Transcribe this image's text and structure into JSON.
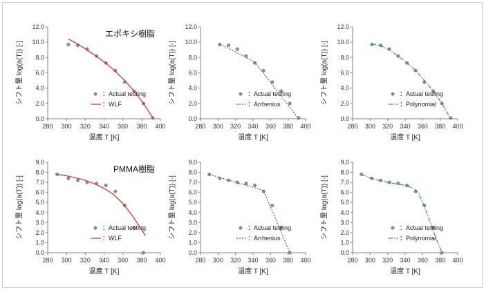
{
  "colors": {
    "actual": "#8c8c8c",
    "wlf": "#d62728",
    "model": "#2b5fbd",
    "poly": "#2ca02c",
    "axis": "#808080"
  },
  "chart_data": [
    {
      "type": "scatter",
      "model": "WLF",
      "title": "エポキシ樹脂",
      "xlabel": "温度 T [K]",
      "ylabel": "シフト量 log(a(T)) [-]",
      "xlim": [
        280,
        400
      ],
      "ylim": [
        0,
        12
      ],
      "xticks": [
        "280",
        "300",
        "320",
        "340",
        "360",
        "380",
        "400"
      ],
      "yticks": [
        "0.0",
        "2.0",
        "4.0",
        "6.0",
        "8.0",
        "10.0",
        "12.0"
      ],
      "legend": [
        "：Actual testing",
        "：WLF"
      ],
      "series": [
        {
          "name": "：Actual testing",
          "kind": "points",
          "x": [
            302,
            312,
            322,
            332,
            342,
            352,
            362,
            372,
            382,
            392
          ],
          "y": [
            9.7,
            9.6,
            9.1,
            8.2,
            7.3,
            6.3,
            4.8,
            3.6,
            2.0,
            0.1
          ]
        },
        {
          "name": "：WLF",
          "kind": "curve",
          "x": [
            302,
            312,
            322,
            332,
            342,
            352,
            362,
            372,
            382,
            392
          ],
          "y": [
            10.4,
            9.75,
            9.0,
            8.15,
            7.25,
            6.2,
            5.0,
            3.6,
            2.0,
            0.1
          ]
        }
      ]
    },
    {
      "type": "scatter",
      "model": "Arrhenius",
      "title": "",
      "xlabel": "温度 T [K]",
      "ylabel": "シフト量 log(a(T)) [-]",
      "xlim": [
        280,
        400
      ],
      "ylim": [
        0,
        12
      ],
      "xticks": [
        "280",
        "300",
        "320",
        "340",
        "360",
        "380",
        "400"
      ],
      "yticks": [
        "0.0",
        "2.0",
        "4.0",
        "6.0",
        "8.0",
        "10.0",
        "12.0"
      ],
      "legend": [
        "：Actual testing",
        "：Arrhenius"
      ],
      "series": [
        {
          "name": "：Actual testing",
          "kind": "points",
          "x": [
            302,
            312,
            322,
            332,
            342,
            352,
            362,
            372,
            382,
            392
          ],
          "y": [
            9.7,
            9.6,
            9.1,
            8.2,
            7.3,
            6.3,
            4.8,
            3.6,
            2.0,
            0.1
          ]
        },
        {
          "name": "：Arrhenius",
          "kind": "dotted",
          "x": [
            302,
            342,
            392
          ],
          "y": [
            9.8,
            7.4,
            0.0
          ]
        }
      ]
    },
    {
      "type": "scatter",
      "model": "Polynomial",
      "title": "",
      "xlabel": "温度 T [K]",
      "ylabel": "シフト量 log(a(T)) [-]",
      "xlim": [
        280,
        400
      ],
      "ylim": [
        0,
        12
      ],
      "xticks": [
        "280",
        "300",
        "320",
        "340",
        "360",
        "380",
        "400"
      ],
      "yticks": [
        "0.0",
        "2.0",
        "4.0",
        "6.0",
        "8.0",
        "10.0",
        "12.0"
      ],
      "legend": [
        "：Actual testing",
        "：Polynomial"
      ],
      "series": [
        {
          "name": "：Actual testing",
          "kind": "points",
          "x": [
            302,
            312,
            322,
            332,
            342,
            352,
            362,
            372,
            382,
            392
          ],
          "y": [
            9.7,
            9.6,
            9.1,
            8.2,
            7.3,
            6.3,
            4.8,
            3.6,
            2.0,
            0.1
          ]
        },
        {
          "name": "：Polynomial",
          "kind": "dashdot",
          "x": [
            302,
            312,
            322,
            332,
            342,
            352,
            362,
            372,
            382,
            392
          ],
          "y": [
            9.8,
            9.55,
            9.0,
            8.2,
            7.3,
            6.3,
            5.0,
            3.6,
            2.0,
            0.0
          ]
        }
      ]
    },
    {
      "type": "scatter",
      "model": "WLF",
      "title": "PMMA樹脂",
      "xlabel": "温度 T [K]",
      "ylabel": "シフト量 log(a(T)) [-]",
      "xlim": [
        280,
        400
      ],
      "ylim": [
        0,
        9
      ],
      "xticks": [
        "280",
        "300",
        "320",
        "340",
        "360",
        "380",
        "400"
      ],
      "yticks": [
        "0.0",
        "1.0",
        "2.0",
        "3.0",
        "4.0",
        "5.0",
        "6.0",
        "7.0",
        "8.0",
        "9.0"
      ],
      "legend": [
        "：Actual testing",
        "：WLF"
      ],
      "series": [
        {
          "name": "：Actual testing",
          "kind": "points",
          "x": [
            290,
            302,
            312,
            322,
            332,
            342,
            352,
            362,
            372,
            382
          ],
          "y": [
            7.8,
            7.4,
            7.2,
            7.0,
            6.9,
            6.7,
            6.1,
            4.7,
            2.5,
            0.0
          ]
        },
        {
          "name": "：WLF",
          "kind": "curve",
          "x": [
            290,
            300,
            310,
            320,
            330,
            340,
            350,
            360,
            370,
            384
          ],
          "y": [
            7.8,
            7.65,
            7.45,
            7.2,
            6.85,
            6.4,
            5.8,
            4.9,
            3.7,
            1.7
          ]
        }
      ]
    },
    {
      "type": "scatter",
      "model": "Arrhenius",
      "title": "",
      "xlabel": "温度 T [K]",
      "ylabel": "シフト量 log(a(T)) [-]",
      "xlim": [
        280,
        400
      ],
      "ylim": [
        0,
        9
      ],
      "xticks": [
        "280",
        "300",
        "320",
        "340",
        "360",
        "380",
        "400"
      ],
      "yticks": [
        "0.0",
        "1.0",
        "2.0",
        "3.0",
        "4.0",
        "5.0",
        "6.0",
        "7.0",
        "8.0",
        "9.0"
      ],
      "legend": [
        "：Actual testing",
        "：Arrhenius"
      ],
      "series": [
        {
          "name": "：Actual testing",
          "kind": "points",
          "x": [
            290,
            302,
            312,
            322,
            332,
            342,
            352,
            362,
            372,
            382
          ],
          "y": [
            7.8,
            7.4,
            7.2,
            7.0,
            6.9,
            6.7,
            6.1,
            4.7,
            2.5,
            0.0
          ]
        },
        {
          "name": "：Arrhenius",
          "kind": "dotted",
          "x": [
            290,
            352,
            382
          ],
          "y": [
            7.8,
            6.2,
            0.0
          ]
        }
      ]
    },
    {
      "type": "scatter",
      "model": "Polynomial",
      "title": "",
      "xlabel": "温度 T [K]",
      "ylabel": "シフト量 log(a(T)) [-]",
      "xlim": [
        280,
        400
      ],
      "ylim": [
        0,
        9
      ],
      "xticks": [
        "280",
        "300",
        "320",
        "340",
        "360",
        "380",
        "400"
      ],
      "yticks": [
        "0.0",
        "1.0",
        "2.0",
        "3.0",
        "4.0",
        "5.0",
        "6.0",
        "7.0",
        "8.0",
        "9.0"
      ],
      "legend": [
        "：Actual testing",
        "：Polynomial"
      ],
      "series": [
        {
          "name": "：Actual testing",
          "kind": "points",
          "x": [
            290,
            302,
            312,
            322,
            332,
            342,
            352,
            362,
            372,
            382
          ],
          "y": [
            7.8,
            7.4,
            7.2,
            7.0,
            6.9,
            6.7,
            6.1,
            4.7,
            2.5,
            0.0
          ]
        },
        {
          "name": "：Polynomial",
          "kind": "dashdot",
          "x": [
            290,
            300,
            310,
            320,
            330,
            340,
            350,
            355,
            360,
            365,
            370,
            375,
            382
          ],
          "y": [
            7.8,
            7.45,
            7.2,
            7.0,
            6.85,
            6.7,
            6.4,
            6.0,
            5.0,
            3.9,
            2.7,
            1.5,
            0.0
          ]
        }
      ]
    }
  ]
}
